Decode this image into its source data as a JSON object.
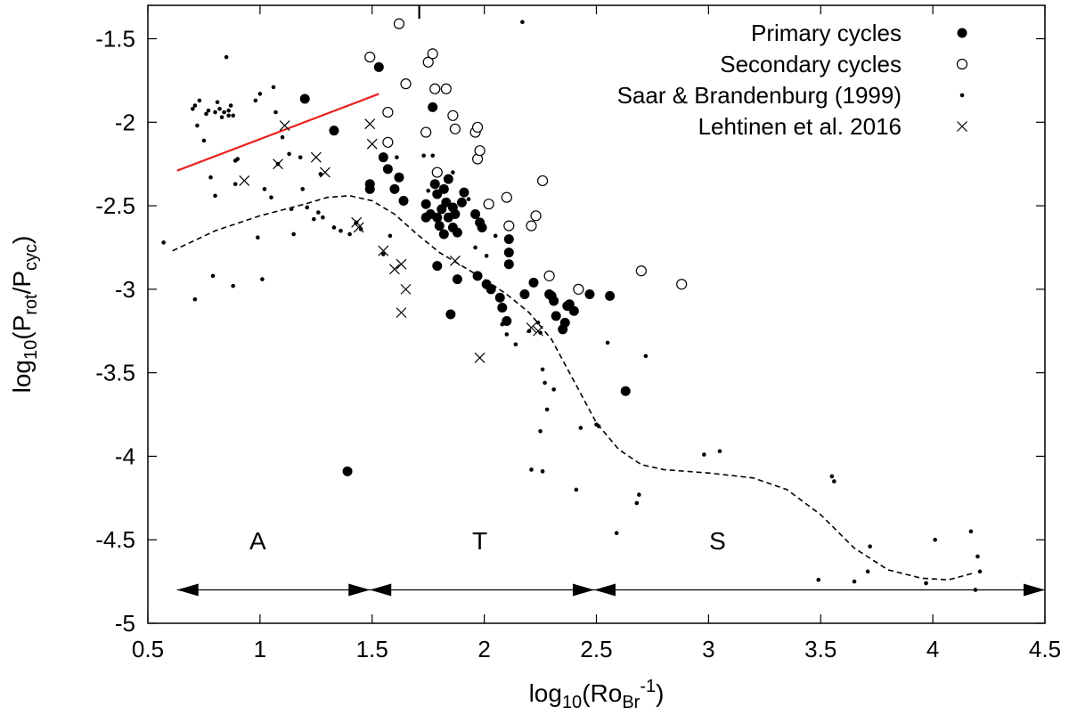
{
  "chart_data": {
    "type": "scatter",
    "title": "",
    "xlabel": "log10(RoBr-1)",
    "xlabel_parts": {
      "pre": "log",
      "sub": "10",
      "mid": "(Ro",
      "sub2": "Br",
      "sup": "-1",
      "post": ")"
    },
    "ylabel": "log10(Prot/Pcyc)",
    "ylabel_parts": {
      "pre": "log",
      "sub1": "10",
      "mid1": "(P",
      "sub2": "rot",
      "mid2": "/P",
      "sub3": "cyc",
      "post": ")"
    },
    "xlim": [
      0.5,
      4.5
    ],
    "ylim": [
      -5,
      -1.3
    ],
    "x_ticks": [
      "0.5",
      "1",
      "1.5",
      "2",
      "2.5",
      "3",
      "3.5",
      "4",
      "4.5"
    ],
    "x_tick_values": [
      0.5,
      1,
      1.5,
      2,
      2.5,
      3,
      3.5,
      4,
      4.5
    ],
    "y_ticks": [
      "-1.5",
      "-2",
      "-2.5",
      "-3",
      "-3.5",
      "-4",
      "-4.5",
      "-5"
    ],
    "y_tick_values": [
      -1.5,
      -2,
      -2.5,
      -3,
      -3.5,
      -4,
      -4.5,
      -5
    ],
    "legend_position": "top-right",
    "series": [
      {
        "name": "Primary cycles",
        "marker": "filled-circle",
        "points": [
          [
            1.2,
            -1.86
          ],
          [
            1.33,
            -2.05
          ],
          [
            1.53,
            -1.67
          ],
          [
            1.49,
            -2.37
          ],
          [
            1.49,
            -2.4
          ],
          [
            1.55,
            -2.21
          ],
          [
            1.57,
            -2.28
          ],
          [
            1.6,
            -2.4
          ],
          [
            1.62,
            -2.33
          ],
          [
            1.64,
            -2.47
          ],
          [
            1.74,
            -2.49
          ],
          [
            1.74,
            -2.57
          ],
          [
            1.76,
            -2.55
          ],
          [
            1.77,
            -1.91
          ],
          [
            1.78,
            -2.37
          ],
          [
            1.79,
            -2.43
          ],
          [
            1.79,
            -2.57
          ],
          [
            1.79,
            -2.86
          ],
          [
            1.8,
            -2.62
          ],
          [
            1.81,
            -2.52
          ],
          [
            1.82,
            -2.67
          ],
          [
            1.82,
            -2.4
          ],
          [
            1.83,
            -2.48
          ],
          [
            1.84,
            -2.57
          ],
          [
            1.84,
            -2.34
          ],
          [
            1.85,
            -3.15
          ],
          [
            1.86,
            -2.51
          ],
          [
            1.86,
            -2.63
          ],
          [
            1.87,
            -2.55
          ],
          [
            1.88,
            -2.66
          ],
          [
            1.88,
            -2.94
          ],
          [
            1.9,
            -2.48
          ],
          [
            1.91,
            -2.42
          ],
          [
            1.96,
            -2.55
          ],
          [
            1.97,
            -2.92
          ],
          [
            1.98,
            -2.6
          ],
          [
            1.99,
            -2.63
          ],
          [
            2.01,
            -2.97
          ],
          [
            2.03,
            -3.0
          ],
          [
            2.07,
            -3.05
          ],
          [
            2.08,
            -3.11
          ],
          [
            2.1,
            -3.19
          ],
          [
            2.11,
            -2.7
          ],
          [
            2.11,
            -2.78
          ],
          [
            2.11,
            -2.85
          ],
          [
            2.18,
            -3.03
          ],
          [
            2.22,
            -2.96
          ],
          [
            2.29,
            -3.03
          ],
          [
            2.3,
            -3.04
          ],
          [
            2.31,
            -3.07
          ],
          [
            2.32,
            -3.16
          ],
          [
            2.35,
            -3.24
          ],
          [
            2.36,
            -3.2
          ],
          [
            2.37,
            -3.1
          ],
          [
            2.38,
            -3.09
          ],
          [
            2.4,
            -3.13
          ],
          [
            2.47,
            -3.03
          ],
          [
            2.56,
            -3.04
          ],
          [
            2.63,
            -3.61
          ],
          [
            1.39,
            -4.09
          ]
        ]
      },
      {
        "name": "Secondary cycles",
        "marker": "open-circle",
        "points": [
          [
            1.49,
            -1.61
          ],
          [
            1.62,
            -1.41
          ],
          [
            1.65,
            -1.77
          ],
          [
            1.75,
            -1.64
          ],
          [
            1.77,
            -1.59
          ],
          [
            1.78,
            -1.8
          ],
          [
            1.83,
            -1.8
          ],
          [
            1.86,
            -1.96
          ],
          [
            1.87,
            -2.04
          ],
          [
            1.96,
            -2.06
          ],
          [
            1.97,
            -2.03
          ],
          [
            1.97,
            -2.22
          ],
          [
            1.98,
            -2.17
          ],
          [
            1.57,
            -1.94
          ],
          [
            1.57,
            -2.12
          ],
          [
            1.74,
            -2.06
          ],
          [
            1.79,
            -2.3
          ],
          [
            2.02,
            -2.49
          ],
          [
            2.1,
            -2.45
          ],
          [
            2.11,
            -2.62
          ],
          [
            2.21,
            -2.62
          ],
          [
            2.23,
            -2.56
          ],
          [
            2.26,
            -2.35
          ],
          [
            2.29,
            -2.92
          ],
          [
            2.42,
            -3.0
          ],
          [
            2.7,
            -2.89
          ],
          [
            2.88,
            -2.97
          ]
        ]
      },
      {
        "name": "Saar & Brandenburg (1999)",
        "marker": "small-dot",
        "points": [
          [
            0.57,
            -2.72
          ],
          [
            0.7,
            -1.92
          ],
          [
            0.71,
            -1.9
          ],
          [
            0.72,
            -2.02
          ],
          [
            0.73,
            -1.87
          ],
          [
            0.75,
            -2.11
          ],
          [
            0.76,
            -1.95
          ],
          [
            0.77,
            -1.93
          ],
          [
            0.78,
            -2.33
          ],
          [
            0.8,
            -1.94
          ],
          [
            0.8,
            -2.44
          ],
          [
            0.81,
            -1.88
          ],
          [
            0.82,
            -1.92
          ],
          [
            0.83,
            -1.97
          ],
          [
            0.84,
            -1.94
          ],
          [
            0.85,
            -1.61
          ],
          [
            0.86,
            -1.93
          ],
          [
            0.86,
            -1.96
          ],
          [
            0.87,
            -1.9
          ],
          [
            0.88,
            -1.96
          ],
          [
            0.89,
            -2.23
          ],
          [
            0.89,
            -2.37
          ],
          [
            0.9,
            -2.22
          ],
          [
            0.71,
            -3.06
          ],
          [
            0.79,
            -2.92
          ],
          [
            0.88,
            -2.98
          ],
          [
            0.98,
            -1.87
          ],
          [
            0.99,
            -2.69
          ],
          [
            1.0,
            -1.83
          ],
          [
            1.01,
            -2.94
          ],
          [
            1.02,
            -2.4
          ],
          [
            1.05,
            -2.45
          ],
          [
            1.06,
            -1.79
          ],
          [
            1.07,
            -1.94
          ],
          [
            1.08,
            -2.25
          ],
          [
            1.1,
            -2.09
          ],
          [
            1.13,
            -2.19
          ],
          [
            1.14,
            -2.52
          ],
          [
            1.15,
            -2.67
          ],
          [
            1.18,
            -2.21
          ],
          [
            1.19,
            -2.4
          ],
          [
            1.21,
            -2.51
          ],
          [
            1.24,
            -2.58
          ],
          [
            1.26,
            -2.54
          ],
          [
            1.27,
            -2.31
          ],
          [
            1.28,
            -2.57
          ],
          [
            1.33,
            -2.63
          ],
          [
            1.36,
            -2.65
          ],
          [
            1.4,
            -2.67
          ],
          [
            1.43,
            -2.6
          ],
          [
            1.45,
            -2.64
          ],
          [
            1.55,
            -2.79
          ],
          [
            1.58,
            -2.68
          ],
          [
            1.61,
            -2.21
          ],
          [
            1.73,
            -2.2
          ],
          [
            1.75,
            -2.41
          ],
          [
            1.77,
            -2.2
          ],
          [
            1.86,
            -2.3
          ],
          [
            1.93,
            -2.46
          ],
          [
            1.96,
            -2.75
          ],
          [
            2.01,
            -2.8
          ],
          [
            2.05,
            -2.68
          ],
          [
            2.08,
            -3.21
          ],
          [
            2.1,
            -3.27
          ],
          [
            2.14,
            -3.33
          ],
          [
            2.17,
            -1.4
          ],
          [
            2.2,
            -3.25
          ],
          [
            2.21,
            -4.08
          ],
          [
            2.24,
            -3.2
          ],
          [
            2.25,
            -3.26
          ],
          [
            2.25,
            -3.85
          ],
          [
            2.26,
            -4.09
          ],
          [
            2.26,
            -3.48
          ],
          [
            2.27,
            -3.56
          ],
          [
            2.28,
            -3.72
          ],
          [
            2.31,
            -3.6
          ],
          [
            2.41,
            -4.2
          ],
          [
            2.43,
            -3.83
          ],
          [
            2.5,
            -3.81
          ],
          [
            2.51,
            -3.82
          ],
          [
            2.55,
            -3.32
          ],
          [
            2.59,
            -4.46
          ],
          [
            2.68,
            -4.28
          ],
          [
            2.69,
            -4.23
          ],
          [
            2.72,
            -3.4
          ],
          [
            2.98,
            -3.99
          ],
          [
            3.05,
            -3.97
          ],
          [
            3.49,
            -4.74
          ],
          [
            3.55,
            -4.12
          ],
          [
            3.56,
            -4.15
          ],
          [
            3.65,
            -4.75
          ],
          [
            3.71,
            -4.69
          ],
          [
            3.72,
            -4.54
          ],
          [
            3.97,
            -4.76
          ],
          [
            4.01,
            -4.5
          ],
          [
            4.17,
            -4.45
          ],
          [
            4.19,
            -4.8
          ],
          [
            4.2,
            -4.6
          ],
          [
            4.21,
            -4.69
          ]
        ]
      },
      {
        "name": "Lehtinen et al. 2016",
        "marker": "cross",
        "points": [
          [
            0.93,
            -2.35
          ],
          [
            1.08,
            -2.25
          ],
          [
            1.11,
            -2.02
          ],
          [
            1.25,
            -2.21
          ],
          [
            1.29,
            -2.3
          ],
          [
            1.43,
            -2.6
          ],
          [
            1.44,
            -2.63
          ],
          [
            1.49,
            -2.01
          ],
          [
            1.5,
            -2.13
          ],
          [
            1.55,
            -2.77
          ],
          [
            1.6,
            -2.88
          ],
          [
            1.63,
            -2.85
          ],
          [
            1.65,
            -3.0
          ],
          [
            1.63,
            -3.14
          ],
          [
            1.87,
            -2.83
          ],
          [
            1.98,
            -3.41
          ],
          [
            2.21,
            -3.23
          ],
          [
            2.24,
            -3.25
          ]
        ]
      }
    ],
    "fit_line": {
      "color": "#e8221c",
      "points": [
        [
          0.63,
          -2.29
        ],
        [
          1.53,
          -1.83
        ]
      ]
    },
    "trend_curve": {
      "style": "dashed",
      "points": [
        [
          0.61,
          -2.77
        ],
        [
          0.8,
          -2.65
        ],
        [
          1.0,
          -2.56
        ],
        [
          1.2,
          -2.49
        ],
        [
          1.3,
          -2.45
        ],
        [
          1.4,
          -2.44
        ],
        [
          1.5,
          -2.47
        ],
        [
          1.6,
          -2.55
        ],
        [
          1.7,
          -2.67
        ],
        [
          1.8,
          -2.78
        ],
        [
          1.9,
          -2.86
        ],
        [
          2.0,
          -2.94
        ],
        [
          2.1,
          -3.03
        ],
        [
          2.2,
          -3.14
        ],
        [
          2.3,
          -3.3
        ],
        [
          2.4,
          -3.55
        ],
        [
          2.5,
          -3.8
        ],
        [
          2.6,
          -3.96
        ],
        [
          2.7,
          -4.05
        ],
        [
          2.8,
          -4.08
        ],
        [
          3.0,
          -4.1
        ],
        [
          3.2,
          -4.13
        ],
        [
          3.35,
          -4.2
        ],
        [
          3.5,
          -4.35
        ],
        [
          3.65,
          -4.55
        ],
        [
          3.8,
          -4.68
        ],
        [
          3.95,
          -4.73
        ],
        [
          4.07,
          -4.74
        ],
        [
          4.18,
          -4.7
        ]
      ]
    },
    "regions": [
      {
        "label": "A",
        "x_center": 0.99,
        "x_start": 0.63,
        "x_end": 1.49
      },
      {
        "label": "T",
        "x_center": 1.98,
        "x_start": 1.49,
        "x_end": 2.49
      },
      {
        "label": "S",
        "x_center": 3.04,
        "x_start": 2.49,
        "x_end": 4.5
      }
    ],
    "region_label_y": -4.5,
    "region_arrow_y": -4.8,
    "error_bar": {
      "x": 1.71,
      "y_low": -1.38,
      "y_high": -1.26
    }
  }
}
